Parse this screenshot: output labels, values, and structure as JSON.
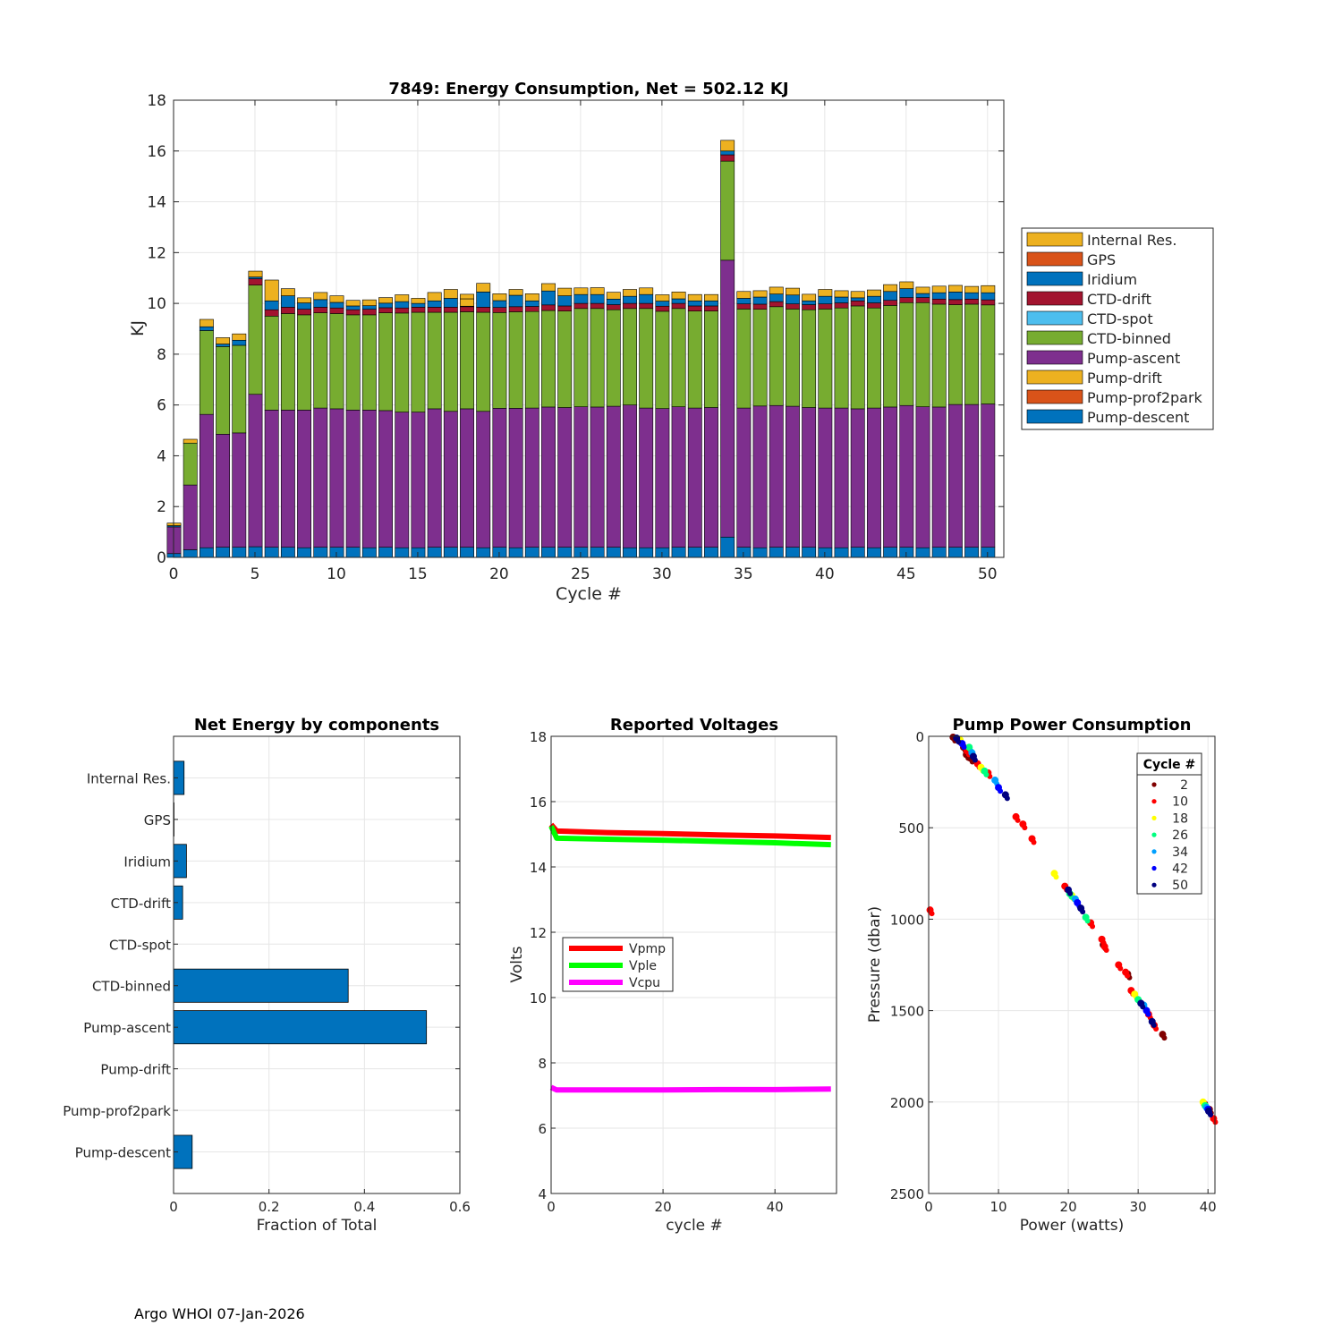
{
  "footer": "Argo WHOI 07-Jan-2026",
  "chart_data": [
    {
      "type": "bar",
      "stacked": true,
      "title": "7849: Energy Consumption,  Net = 502.12 KJ",
      "xlabel": "Cycle #",
      "ylabel": "KJ",
      "xlim": [
        0,
        51
      ],
      "ylim": [
        0,
        18
      ],
      "xticks": [
        0,
        5,
        10,
        15,
        20,
        25,
        30,
        35,
        40,
        45,
        50
      ],
      "yticks": [
        0,
        2,
        4,
        6,
        8,
        10,
        12,
        14,
        16,
        18
      ],
      "grid": true,
      "legend_position": "outside-right",
      "legend": [
        "Internal Res.",
        "GPS",
        "Iridium",
        "CTD-drift",
        "CTD-spot",
        "CTD-binned",
        "Pump-ascent",
        "Pump-drift",
        "Pump-prof2park",
        "Pump-descent"
      ],
      "colors": {
        "Pump-descent": "#0072BD",
        "Pump-prof2park": "#D95319",
        "Pump-drift": "#EDB120",
        "Pump-ascent": "#7E2F8E",
        "CTD-binned": "#77AC30",
        "CTD-spot": "#4DBEEE",
        "CTD-drift": "#A2142F",
        "Iridium": "#0072BD",
        "GPS": "#D95319",
        "Internal Res.": "#EDB120"
      },
      "stack_order": [
        "Pump-descent",
        "Pump-ascent",
        "CTD-binned",
        "CTD-drift",
        "Iridium",
        "Internal Res."
      ],
      "cycles": [
        0,
        1,
        2,
        3,
        4,
        5,
        6,
        7,
        8,
        9,
        10,
        11,
        12,
        13,
        14,
        15,
        16,
        17,
        18,
        19,
        20,
        21,
        22,
        23,
        24,
        25,
        26,
        27,
        28,
        29,
        30,
        31,
        32,
        33,
        34,
        35,
        36,
        37,
        38,
        39,
        40,
        41,
        42,
        43,
        44,
        45,
        46,
        47,
        48,
        49,
        50
      ],
      "totals": [
        1.35,
        4.65,
        9.37,
        8.65,
        8.8,
        11.27,
        10.92,
        10.58,
        10.22,
        10.43,
        10.3,
        10.12,
        10.14,
        10.23,
        10.34,
        10.2,
        10.43,
        10.55,
        10.36,
        10.79,
        10.38,
        10.55,
        10.38,
        10.78,
        10.6,
        10.61,
        10.62,
        10.44,
        10.55,
        10.61,
        10.34,
        10.45,
        10.35,
        10.35,
        16.42,
        10.47,
        10.5,
        10.64,
        10.6,
        10.36,
        10.55,
        10.5,
        10.47,
        10.53,
        10.74,
        10.85,
        10.64,
        10.68,
        10.71,
        10.67,
        10.7
      ],
      "series": [
        {
          "name": "Pump-descent",
          "values": [
            0.15,
            0.3,
            0.38,
            0.4,
            0.4,
            0.42,
            0.4,
            0.4,
            0.38,
            0.4,
            0.4,
            0.4,
            0.38,
            0.4,
            0.38,
            0.38,
            0.4,
            0.4,
            0.4,
            0.38,
            0.4,
            0.38,
            0.4,
            0.4,
            0.4,
            0.4,
            0.4,
            0.4,
            0.38,
            0.38,
            0.38,
            0.4,
            0.4,
            0.4,
            0.8,
            0.4,
            0.38,
            0.4,
            0.4,
            0.4,
            0.38,
            0.38,
            0.4,
            0.38,
            0.4,
            0.4,
            0.38,
            0.4,
            0.4,
            0.4,
            0.4
          ]
        },
        {
          "name": "Pump-ascent",
          "values": [
            1.05,
            2.55,
            5.25,
            4.45,
            4.5,
            6.0,
            5.4,
            5.4,
            5.42,
            5.48,
            5.45,
            5.4,
            5.42,
            5.38,
            5.34,
            5.34,
            5.45,
            5.35,
            5.45,
            5.37,
            5.47,
            5.49,
            5.48,
            5.52,
            5.5,
            5.53,
            5.52,
            5.55,
            5.62,
            5.5,
            5.48,
            5.53,
            5.48,
            5.5,
            10.9,
            5.48,
            5.58,
            5.58,
            5.55,
            5.5,
            5.5,
            5.5,
            5.45,
            5.5,
            5.52,
            5.58,
            5.55,
            5.52,
            5.62,
            5.62,
            5.64
          ]
        },
        {
          "name": "CTD-binned",
          "values": [
            0.0,
            1.65,
            3.3,
            3.45,
            3.45,
            4.3,
            3.7,
            3.8,
            3.75,
            3.75,
            3.75,
            3.75,
            3.75,
            3.85,
            3.9,
            3.93,
            3.8,
            3.9,
            3.82,
            3.9,
            3.77,
            3.8,
            3.8,
            3.8,
            3.8,
            3.87,
            3.88,
            3.8,
            3.8,
            3.92,
            3.83,
            3.87,
            3.82,
            3.8,
            3.9,
            3.9,
            3.81,
            3.89,
            3.83,
            3.85,
            3.9,
            3.94,
            4.05,
            3.94,
            4.0,
            4.05,
            4.1,
            4.05,
            3.93,
            3.95,
            3.9
          ]
        },
        {
          "name": "CTD-drift",
          "values": [
            0.0,
            0.0,
            0.0,
            0.0,
            0.0,
            0.25,
            0.25,
            0.25,
            0.22,
            0.22,
            0.22,
            0.2,
            0.22,
            0.2,
            0.2,
            0.2,
            0.2,
            0.2,
            0.2,
            0.2,
            0.2,
            0.2,
            0.2,
            0.22,
            0.2,
            0.2,
            0.2,
            0.2,
            0.2,
            0.2,
            0.2,
            0.2,
            0.2,
            0.2,
            0.25,
            0.2,
            0.2,
            0.2,
            0.2,
            0.2,
            0.2,
            0.2,
            0.2,
            0.2,
            0.2,
            0.2,
            0.2,
            0.2,
            0.2,
            0.2,
            0.2
          ]
        },
        {
          "name": "Iridium",
          "values": [
            0.05,
            0.0,
            0.15,
            0.1,
            0.2,
            0.07,
            0.35,
            0.45,
            0.25,
            0.3,
            0.22,
            0.15,
            0.14,
            0.18,
            0.25,
            0.15,
            0.25,
            0.35,
            0.02,
            0.6,
            0.27,
            0.45,
            0.22,
            0.55,
            0.4,
            0.35,
            0.35,
            0.22,
            0.28,
            0.35,
            0.2,
            0.18,
            0.2,
            0.2,
            0.15,
            0.22,
            0.28,
            0.3,
            0.35,
            0.15,
            0.3,
            0.23,
            0.12,
            0.26,
            0.35,
            0.35,
            0.16,
            0.25,
            0.3,
            0.25,
            0.28
          ]
        },
        {
          "name": "Internal Res.",
          "values": [
            0.1,
            0.15,
            0.29,
            0.25,
            0.25,
            0.23,
            0.82,
            0.28,
            0.2,
            0.28,
            0.26,
            0.22,
            0.23,
            0.22,
            0.27,
            0.2,
            0.33,
            0.35,
            0.29,
            0.34,
            0.27,
            0.23,
            0.28,
            0.29,
            0.3,
            0.26,
            0.27,
            0.27,
            0.27,
            0.26,
            0.25,
            0.27,
            0.25,
            0.25,
            0.42,
            0.27,
            0.25,
            0.27,
            0.27,
            0.26,
            0.27,
            0.25,
            0.25,
            0.25,
            0.27,
            0.27,
            0.25,
            0.26,
            0.26,
            0.25,
            0.28
          ]
        }
      ]
    },
    {
      "type": "bar",
      "orientation": "horizontal",
      "title": "Net Energy by components",
      "xlabel": "Fraction of Total",
      "xlim": [
        0,
        0.6
      ],
      "xticks": [
        0,
        0.2,
        0.4,
        0.6
      ],
      "xtick_labels": [
        "0",
        "0.2",
        "0.4",
        "0.6"
      ],
      "grid": true,
      "color": "#0072BD",
      "categories": [
        "Internal Res.",
        "GPS",
        "Iridium",
        "CTD-drift",
        "CTD-spot",
        "CTD-binned",
        "Pump-ascent",
        "Pump-drift",
        "Pump-prof2park",
        "Pump-descent"
      ],
      "values": [
        0.022,
        0.001,
        0.027,
        0.019,
        0.0,
        0.366,
        0.53,
        0.0,
        0.0,
        0.039
      ]
    },
    {
      "type": "line",
      "title": "Reported Voltages",
      "xlabel": "cycle #",
      "ylabel": "Volts",
      "xlim": [
        0,
        51
      ],
      "ylim": [
        4,
        18
      ],
      "xticks": [
        0,
        20,
        40
      ],
      "yticks": [
        4,
        6,
        8,
        10,
        12,
        14,
        16,
        18
      ],
      "grid": true,
      "legend_position": "middle-left",
      "series": [
        {
          "name": "Vpmp",
          "color": "#FF0000",
          "x": [
            0,
            1,
            10,
            20,
            30,
            40,
            50
          ],
          "y": [
            15.3,
            15.1,
            15.05,
            15.02,
            14.98,
            14.95,
            14.9
          ]
        },
        {
          "name": "Vple",
          "color": "#00FF00",
          "x": [
            0,
            1,
            10,
            20,
            30,
            40,
            50
          ],
          "y": [
            15.25,
            14.88,
            14.85,
            14.82,
            14.78,
            14.74,
            14.68
          ]
        },
        {
          "name": "Vcpu",
          "color": "#FF00FF",
          "x": [
            0,
            1,
            10,
            20,
            30,
            40,
            50
          ],
          "y": [
            7.25,
            7.17,
            7.17,
            7.17,
            7.18,
            7.18,
            7.2
          ]
        }
      ]
    },
    {
      "type": "scatter",
      "title": "Pump Power Consumption",
      "xlabel": "Power (watts)",
      "ylabel": "Pressure (dbar)",
      "xlim": [
        0,
        41
      ],
      "ylim": [
        0,
        2500
      ],
      "y_reversed": true,
      "xticks": [
        0,
        10,
        20,
        30,
        40
      ],
      "yticks": [
        0,
        500,
        1000,
        1500,
        2000,
        2500
      ],
      "grid": true,
      "legend_title": "Cycle #",
      "legend_position": "top-right",
      "series": [
        {
          "name": "2",
          "color": "#800000",
          "points": [
            [
              3.5,
              5
            ],
            [
              4.2,
              15
            ],
            [
              5,
              60
            ],
            [
              5.4,
              100
            ],
            [
              6,
              120
            ],
            [
              25,
              1140
            ],
            [
              28.5,
              1300
            ],
            [
              33.5,
              1630
            ],
            [
              39.5,
              2010
            ],
            [
              40.2,
              2040
            ]
          ]
        },
        {
          "name": "10",
          "color": "#FF0000",
          "points": [
            [
              0.2,
              950
            ],
            [
              5.5,
              80
            ],
            [
              7,
              150
            ],
            [
              8.5,
              200
            ],
            [
              12.5,
              440
            ],
            [
              13.5,
              480
            ],
            [
              14.8,
              560
            ],
            [
              19.5,
              820
            ],
            [
              23.2,
              1020
            ],
            [
              24.8,
              1110
            ],
            [
              25.2,
              1150
            ],
            [
              27.2,
              1250
            ],
            [
              28.2,
              1290
            ],
            [
              29,
              1390
            ],
            [
              31.5,
              1520
            ],
            [
              32.3,
              1580
            ],
            [
              40.8,
              2090
            ]
          ]
        },
        {
          "name": "18",
          "color": "#FFFF00",
          "points": [
            [
              4.5,
              20
            ],
            [
              7.5,
              170
            ],
            [
              18,
              750
            ],
            [
              20.5,
              870
            ],
            [
              29.5,
              1410
            ],
            [
              39.3,
              2000
            ]
          ]
        },
        {
          "name": "26",
          "color": "#00FF80",
          "points": [
            [
              5.8,
              60
            ],
            [
              8,
              190
            ],
            [
              20.2,
              860
            ],
            [
              22.5,
              990
            ],
            [
              30,
              1440
            ],
            [
              39.6,
              2020
            ]
          ]
        },
        {
          "name": "34",
          "color": "#00A0FF",
          "points": [
            [
              6.2,
              90
            ],
            [
              9.5,
              240
            ],
            [
              21,
              890
            ],
            [
              30.8,
              1470
            ],
            [
              39.8,
              2030
            ]
          ]
        },
        {
          "name": "42",
          "color": "#0000FF",
          "points": [
            [
              4.8,
              40
            ],
            [
              10,
              280
            ],
            [
              21.3,
              910
            ],
            [
              31.2,
              1500
            ],
            [
              40,
              2040
            ]
          ]
        },
        {
          "name": "50",
          "color": "#000080",
          "points": [
            [
              4,
              10
            ],
            [
              6.4,
              110
            ],
            [
              11,
              320
            ],
            [
              20,
              840
            ],
            [
              21.8,
              940
            ],
            [
              30.4,
              1460
            ],
            [
              32,
              1560
            ],
            [
              40.1,
              2050
            ]
          ]
        }
      ]
    }
  ]
}
